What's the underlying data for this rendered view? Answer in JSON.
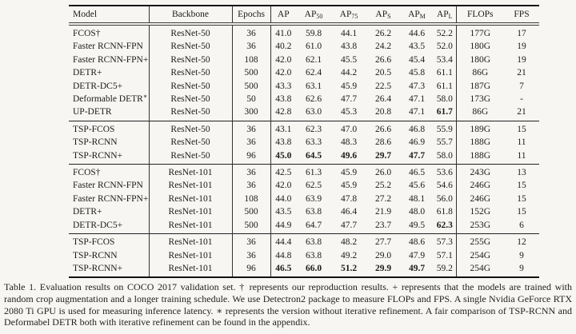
{
  "table": {
    "columns": [
      {
        "label": "Model",
        "sub": ""
      },
      {
        "label": "Backbone",
        "sub": ""
      },
      {
        "label": "Epochs",
        "sub": ""
      },
      {
        "label": "AP",
        "sub": ""
      },
      {
        "label": "AP",
        "sub": "50"
      },
      {
        "label": "AP",
        "sub": "75"
      },
      {
        "label": "AP",
        "sub": "S"
      },
      {
        "label": "AP",
        "sub": "M"
      },
      {
        "label": "AP",
        "sub": "L"
      },
      {
        "label": "FLOPs",
        "sub": ""
      },
      {
        "label": "FPS",
        "sub": ""
      }
    ],
    "groups": [
      {
        "rows": [
          {
            "model": "FCOS†",
            "sup": "",
            "backbone": "ResNet-50",
            "epochs": "36",
            "values": [
              "41.0",
              "59.8",
              "44.1",
              "26.2",
              "44.6",
              "52.2"
            ],
            "flops": "177G",
            "fps": "17",
            "bold": []
          },
          {
            "model": "Faster RCNN-FPN",
            "sup": "",
            "backbone": "ResNet-50",
            "epochs": "36",
            "values": [
              "40.2",
              "61.0",
              "43.8",
              "24.2",
              "43.5",
              "52.0"
            ],
            "flops": "180G",
            "fps": "19",
            "bold": []
          },
          {
            "model": "Faster RCNN-FPN+",
            "sup": "",
            "backbone": "ResNet-50",
            "epochs": "108",
            "values": [
              "42.0",
              "62.1",
              "45.5",
              "26.6",
              "45.4",
              "53.4"
            ],
            "flops": "180G",
            "fps": "19",
            "bold": []
          },
          {
            "model": "DETR+",
            "sup": "",
            "backbone": "ResNet-50",
            "epochs": "500",
            "values": [
              "42.0",
              "62.4",
              "44.2",
              "20.5",
              "45.8",
              "61.1"
            ],
            "flops": "86G",
            "fps": "21",
            "bold": []
          },
          {
            "model": "DETR-DC5+",
            "sup": "",
            "backbone": "ResNet-50",
            "epochs": "500",
            "values": [
              "43.3",
              "63.1",
              "45.9",
              "22.5",
              "47.3",
              "61.1"
            ],
            "flops": "187G",
            "fps": "7",
            "bold": []
          },
          {
            "model": "Deformable DETR",
            "sup": "∗",
            "backbone": "ResNet-50",
            "epochs": "50",
            "values": [
              "43.8",
              "62.6",
              "47.7",
              "26.4",
              "47.1",
              "58.0"
            ],
            "flops": "173G",
            "fps": "-",
            "bold": []
          },
          {
            "model": "UP-DETR",
            "sup": "",
            "backbone": "ResNet-50",
            "epochs": "300",
            "values": [
              "42.8",
              "63.0",
              "45.3",
              "20.8",
              "47.1",
              "61.7"
            ],
            "flops": "86G",
            "fps": "21",
            "bold": [
              5
            ]
          }
        ]
      },
      {
        "rows": [
          {
            "model": "TSP-FCOS",
            "sup": "",
            "backbone": "ResNet-50",
            "epochs": "36",
            "values": [
              "43.1",
              "62.3",
              "47.0",
              "26.6",
              "46.8",
              "55.9"
            ],
            "flops": "189G",
            "fps": "15",
            "bold": []
          },
          {
            "model": "TSP-RCNN",
            "sup": "",
            "backbone": "ResNet-50",
            "epochs": "36",
            "values": [
              "43.8",
              "63.3",
              "48.3",
              "28.6",
              "46.9",
              "55.7"
            ],
            "flops": "188G",
            "fps": "11",
            "bold": []
          },
          {
            "model": "TSP-RCNN+",
            "sup": "",
            "backbone": "ResNet-50",
            "epochs": "96",
            "values": [
              "45.0",
              "64.5",
              "49.6",
              "29.7",
              "47.7",
              "58.0"
            ],
            "flops": "188G",
            "fps": "11",
            "bold": [
              0,
              1,
              2,
              3,
              4
            ]
          }
        ]
      },
      {
        "rows": [
          {
            "model": "FCOS†",
            "sup": "",
            "backbone": "ResNet-101",
            "epochs": "36",
            "values": [
              "42.5",
              "61.3",
              "45.9",
              "26.0",
              "46.5",
              "53.6"
            ],
            "flops": "243G",
            "fps": "13",
            "bold": []
          },
          {
            "model": "Faster RCNN-FPN",
            "sup": "",
            "backbone": "ResNet-101",
            "epochs": "36",
            "values": [
              "42.0",
              "62.5",
              "45.9",
              "25.2",
              "45.6",
              "54.6"
            ],
            "flops": "246G",
            "fps": "15",
            "bold": []
          },
          {
            "model": "Faster RCNN-FPN+",
            "sup": "",
            "backbone": "ResNet-101",
            "epochs": "108",
            "values": [
              "44.0",
              "63.9",
              "47.8",
              "27.2",
              "48.1",
              "56.0"
            ],
            "flops": "246G",
            "fps": "15",
            "bold": []
          },
          {
            "model": "DETR+",
            "sup": "",
            "backbone": "ResNet-101",
            "epochs": "500",
            "values": [
              "43.5",
              "63.8",
              "46.4",
              "21.9",
              "48.0",
              "61.8"
            ],
            "flops": "152G",
            "fps": "15",
            "bold": []
          },
          {
            "model": "DETR-DC5+",
            "sup": "",
            "backbone": "ResNet-101",
            "epochs": "500",
            "values": [
              "44.9",
              "64.7",
              "47.7",
              "23.7",
              "49.5",
              "62.3"
            ],
            "flops": "253G",
            "fps": "6",
            "bold": [
              5
            ]
          }
        ]
      },
      {
        "rows": [
          {
            "model": "TSP-FCOS",
            "sup": "",
            "backbone": "ResNet-101",
            "epochs": "36",
            "values": [
              "44.4",
              "63.8",
              "48.2",
              "27.7",
              "48.6",
              "57.3"
            ],
            "flops": "255G",
            "fps": "12",
            "bold": []
          },
          {
            "model": "TSP-RCNN",
            "sup": "",
            "backbone": "ResNet-101",
            "epochs": "36",
            "values": [
              "44.8",
              "63.8",
              "49.2",
              "29.0",
              "47.9",
              "57.1"
            ],
            "flops": "254G",
            "fps": "9",
            "bold": []
          },
          {
            "model": "TSP-RCNN+",
            "sup": "",
            "backbone": "ResNet-101",
            "epochs": "96",
            "values": [
              "46.5",
              "66.0",
              "51.2",
              "29.9",
              "49.7",
              "59.2"
            ],
            "flops": "254G",
            "fps": "9",
            "bold": [
              0,
              1,
              2,
              3,
              4
            ]
          }
        ]
      }
    ]
  },
  "caption": {
    "text": "Table 1. Evaluation results on COCO 2017 validation set. † represents our reproduction results. + represents that the models are trained with random crop augmentation and a longer training schedule. We use Detectron2 package to measure FLOPs and FPS. A single Nvidia GeForce RTX 2080 Ti GPU is used for measuring inference latency. ∗ represents the version without iterative refinement. A fair comparison of TSP-RCNN and Deformabel DETR both with iterative refinement can be found in the appendix."
  }
}
